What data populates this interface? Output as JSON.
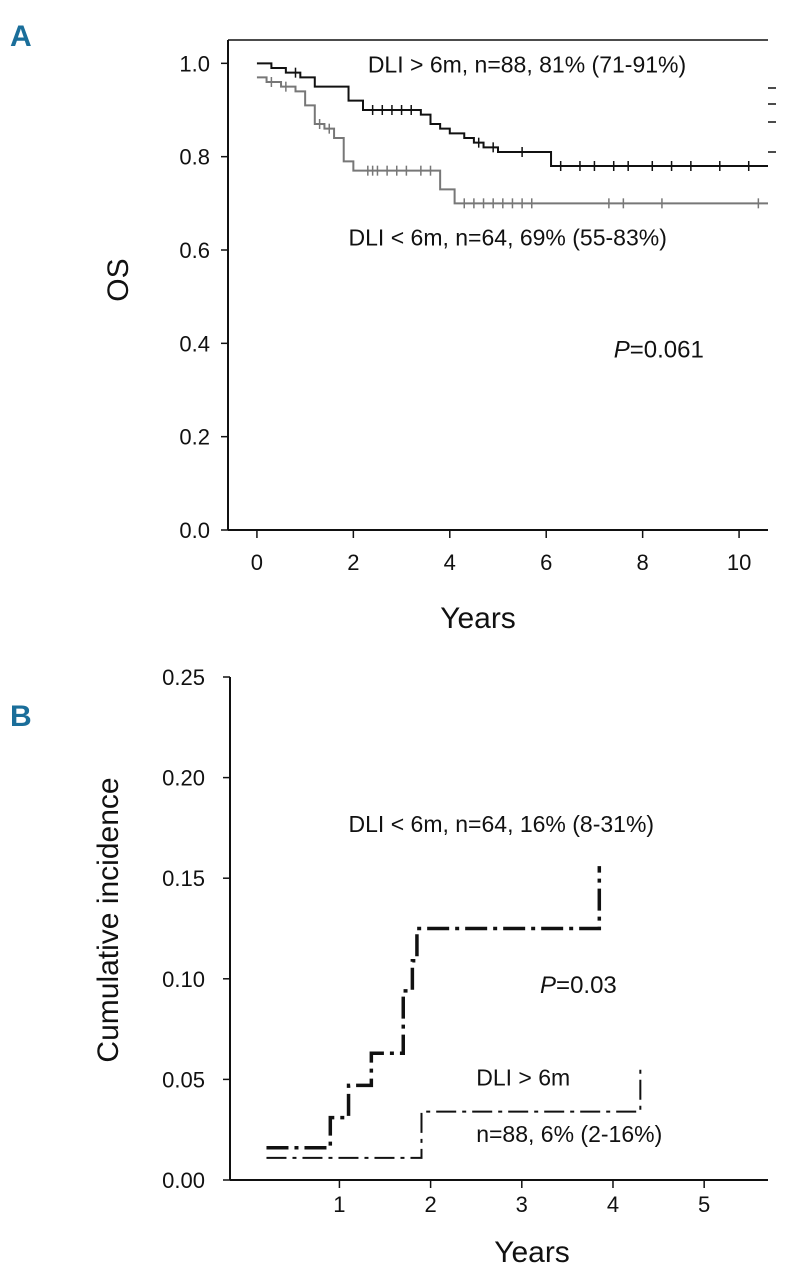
{
  "panels": [
    {
      "letter": "A",
      "chart_data": {
        "type": "line",
        "subtype": "kaplan-meier",
        "title": "",
        "xlabel": "Years",
        "ylabel": "OS",
        "xlim": [
          -0.6,
          10.6
        ],
        "ylim": [
          0.0,
          1.05
        ],
        "xticks": [
          0,
          2,
          4,
          6,
          8,
          10
        ],
        "xtick_labels": [
          "0",
          "2",
          "4",
          "6",
          "8",
          "10"
        ],
        "yticks": [
          0.0,
          0.2,
          0.4,
          0.6,
          0.8,
          1.0
        ],
        "ytick_labels": [
          "0.0",
          "0.2",
          "0.4",
          "0.6",
          "0.8",
          "1.0"
        ],
        "grid": false,
        "series": [
          {
            "name": "DLI > 6m, n=88, 81% (71-91%)",
            "color": "#111111",
            "style": "step",
            "x": [
              0,
              0.3,
              0.6,
              0.9,
              1.2,
              1.9,
              2.2,
              3.4,
              3.6,
              3.8,
              4.0,
              4.3,
              4.5,
              4.7,
              5.0,
              6.1,
              10.6
            ],
            "y": [
              1.0,
              0.99,
              0.98,
              0.97,
              0.95,
              0.92,
              0.9,
              0.89,
              0.87,
              0.86,
              0.85,
              0.84,
              0.83,
              0.82,
              0.81,
              0.78,
              0.78
            ],
            "censor_x": [
              0.8,
              2.4,
              2.6,
              2.8,
              3.0,
              3.2,
              4.6,
              4.9,
              5.5,
              6.3,
              6.7,
              7.0,
              7.4,
              7.7,
              8.2,
              8.6,
              9.0,
              9.6,
              10.2
            ]
          },
          {
            "name": "DLI < 6m, n=64, 69% (55-83%)",
            "color": "#777777",
            "style": "step",
            "x": [
              0,
              0.2,
              0.5,
              0.8,
              1.0,
              1.2,
              1.4,
              1.6,
              1.8,
              2.0,
              3.8,
              4.1,
              10.6
            ],
            "y": [
              0.97,
              0.96,
              0.95,
              0.94,
              0.91,
              0.87,
              0.86,
              0.84,
              0.79,
              0.77,
              0.73,
              0.7,
              0.7
            ],
            "censor_x": [
              0.3,
              0.6,
              1.3,
              1.5,
              2.3,
              2.4,
              2.5,
              2.7,
              2.9,
              3.1,
              3.4,
              3.6,
              4.3,
              4.5,
              4.7,
              4.9,
              5.1,
              5.3,
              5.5,
              5.7,
              7.3,
              7.6,
              8.4,
              10.4
            ]
          }
        ],
        "annotations": [
          {
            "text": "DLI > 6m, n=88, 81% (71-91%)",
            "x": 2.3,
            "y": 0.98
          },
          {
            "text": "DLI < 6m, n=64, 69% (55-83%)",
            "x": 1.9,
            "y": 0.61
          }
        ],
        "pvalue": {
          "prefix": "P",
          "value": "=0.061",
          "x": 7.4,
          "y": 0.37
        }
      }
    },
    {
      "letter": "B",
      "chart_data": {
        "type": "line",
        "subtype": "cumulative-incidence",
        "title": "",
        "xlabel": "Years",
        "ylabel": "Cumulative incidence",
        "xlim": [
          -0.2,
          5.7
        ],
        "ylim": [
          0.0,
          0.25
        ],
        "xticks": [
          1,
          2,
          3,
          4,
          5
        ],
        "xtick_labels": [
          "1",
          "2",
          "3",
          "4",
          "5"
        ],
        "yticks": [
          0.0,
          0.05,
          0.1,
          0.15,
          0.2,
          0.25
        ],
        "ytick_labels": [
          "0.00",
          "0.05",
          "0.10",
          "0.15",
          "0.20",
          "0.25"
        ],
        "grid": false,
        "series": [
          {
            "name": "DLI < 6m, n=64, 16% (8-31%)",
            "color": "#111111",
            "style": "step-dashdot-thick",
            "x": [
              0.2,
              0.9,
              1.1,
              1.35,
              1.7,
              1.8,
              1.85,
              3.85,
              3.85
            ],
            "y": [
              0.016,
              0.031,
              0.047,
              0.063,
              0.094,
              0.109,
              0.125,
              0.125,
              0.156
            ]
          },
          {
            "name": "DLI > 6m n=88, 6% (2-16%)",
            "color": "#111111",
            "style": "step-dashdot-thin",
            "x": [
              0.2,
              1.9,
              4.3,
              4.3
            ],
            "y": [
              0.011,
              0.034,
              0.034,
              0.057
            ]
          }
        ],
        "annotations": [
          {
            "text": "DLI < 6m, n=64, 16% (8-31%)",
            "x": 1.1,
            "y": 0.173
          },
          {
            "text": "DLI > 6m",
            "x": 2.5,
            "y": 0.047
          },
          {
            "text": "n=88, 6% (2-16%)",
            "x": 2.5,
            "y": 0.019
          }
        ],
        "pvalue": {
          "prefix": "P",
          "value": "=0.03",
          "x": 3.2,
          "y": 0.093
        }
      }
    }
  ]
}
